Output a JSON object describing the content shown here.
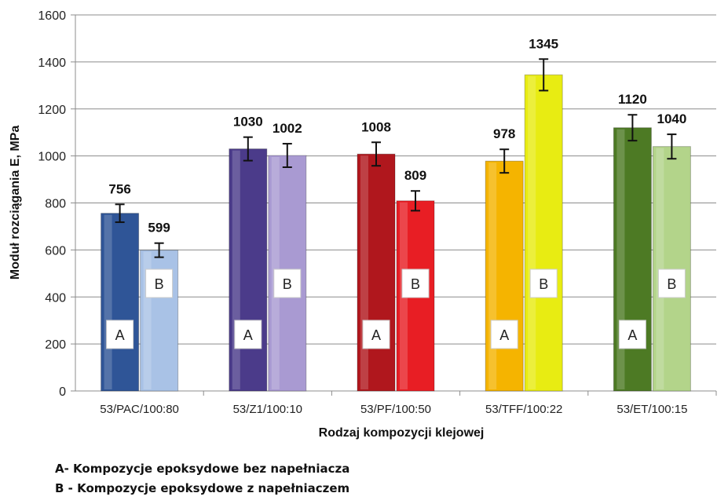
{
  "chart_data": {
    "type": "bar",
    "ylabel": "Moduł rozciągania E, MPa",
    "xlabel": "Rodzaj kompozycji klejowej",
    "ylim": [
      0,
      1600
    ],
    "yticks": [
      0,
      200,
      400,
      600,
      800,
      1000,
      1200,
      1400,
      1600
    ],
    "grid": true,
    "categories": [
      "53/PAC/100:80",
      "53/Z1/100:10",
      "53/PF/100:50",
      "53/TFF/100:22",
      "53/ET/100:15"
    ],
    "series": [
      {
        "tag": "A",
        "values": [
          756,
          1030,
          1008,
          978,
          1120
        ],
        "errors": [
          38,
          50,
          50,
          50,
          55
        ]
      },
      {
        "tag": "B",
        "values": [
          599,
          1002,
          809,
          1345,
          1040
        ],
        "errors": [
          30,
          50,
          42,
          67,
          52
        ]
      }
    ],
    "colors": {
      "A": [
        "#2f5597",
        "#4b3b8a",
        "#b0171d",
        "#f5b400",
        "#4d7a24"
      ],
      "B": [
        "#a9c2e6",
        "#a99ad2",
        "#e81e24",
        "#e8ec12",
        "#b3d48a"
      ]
    }
  },
  "legend": {
    "a": "A- Kompozycje epoksydowe bez napełniacza",
    "b": "B - Kompozycje epoksydowe z napełniaczem"
  }
}
